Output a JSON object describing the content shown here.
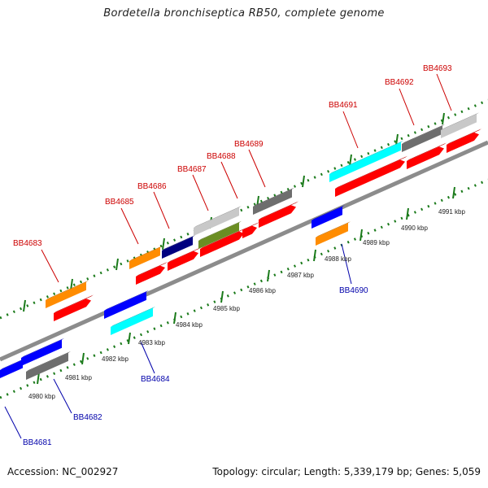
{
  "title": "Bordetella bronchiseptica RB50, complete genome",
  "footer": {
    "accession": "Accession: NC_002927",
    "topology": "Topology: circular; Length: 5,339,179 bp; Genes: 5,059"
  },
  "colors": {
    "forward_label": "#cc0000",
    "reverse_label": "#0000aa",
    "backbone": "#8c8c8c",
    "ticks": "#1a7a1a",
    "orange": "#ff8c00",
    "red": "#ff0000",
    "blue": "#0000ff",
    "cyan": "#00ffff",
    "dark_gray": "#6e6e6e",
    "light_gray": "#c8c8c8",
    "olive": "#6b8e23",
    "navy": "#000080"
  },
  "kbp_labels": [
    "4980 kbp",
    "4981 kbp",
    "4982 kbp",
    "4983 kbp",
    "4984 kbp",
    "4985 kbp",
    "4986 kbp",
    "4987 kbp",
    "4988 kbp",
    "4989 kbp",
    "4990 kbp",
    "4991 kbp"
  ],
  "forward_genes": [
    "BB4683",
    "BB4685",
    "BB4686",
    "BB4687",
    "BB4688",
    "BB4689",
    "BB4691",
    "BB4692",
    "BB4693"
  ],
  "reverse_genes": [
    "BB4681",
    "BB4682",
    "BB4684",
    "BB4690"
  ]
}
